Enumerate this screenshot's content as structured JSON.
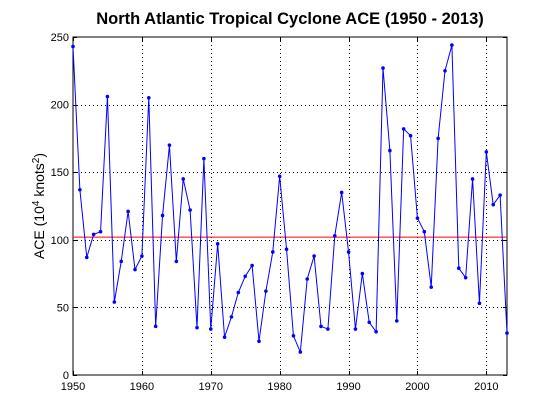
{
  "chart_data": {
    "type": "line",
    "title": "North Atlantic Tropical Cyclone ACE (1950 - 2013)",
    "xlabel": "",
    "ylabel": {
      "prefix": "ACE (10",
      "sup1": "4",
      "middle": " knots",
      "sup2": "2",
      "suffix": ")"
    },
    "xlim": [
      1950,
      2013
    ],
    "ylim": [
      0,
      250
    ],
    "xticks": [
      1950,
      1960,
      1970,
      1980,
      1990,
      2000,
      2010
    ],
    "yticks": [
      0,
      50,
      100,
      150,
      200,
      250
    ],
    "grid": true,
    "legend": "none",
    "series_color": "#0000ff",
    "reference_color": "#ff0000",
    "axis_color": "#000000",
    "grid_color": "#000000",
    "series": [
      {
        "x": [
          1950,
          1951,
          1952,
          1953,
          1954,
          1955,
          1956,
          1957,
          1958,
          1959,
          1960,
          1961,
          1962,
          1963,
          1964,
          1965,
          1966,
          1967,
          1968,
          1969,
          1970,
          1971,
          1972,
          1973,
          1974,
          1975,
          1976,
          1977,
          1978,
          1979,
          1980,
          1981,
          1982,
          1983,
          1984,
          1985,
          1986,
          1987,
          1988,
          1989,
          1990,
          1991,
          1992,
          1993,
          1994,
          1995,
          1996,
          1997,
          1998,
          1999,
          2000,
          2001,
          2002,
          2003,
          2004,
          2005,
          2006,
          2007,
          2008,
          2009,
          2010,
          2011,
          2012,
          2013
        ],
        "values": [
          243,
          137,
          87,
          104,
          106,
          206,
          54,
          84,
          121,
          78,
          88,
          205,
          36,
          118,
          170,
          84,
          145,
          122,
          35,
          160,
          34,
          97,
          28,
          43,
          61,
          73,
          81,
          25,
          62,
          91,
          147,
          93,
          29,
          17,
          71,
          88,
          36,
          34,
          103,
          135,
          91,
          34,
          75,
          39,
          32,
          227,
          166,
          40,
          182,
          177,
          116,
          106,
          65,
          175,
          225,
          244,
          79,
          72,
          145,
          53,
          165,
          126,
          133,
          31
        ]
      }
    ],
    "reference_line": {
      "y": 102
    }
  }
}
